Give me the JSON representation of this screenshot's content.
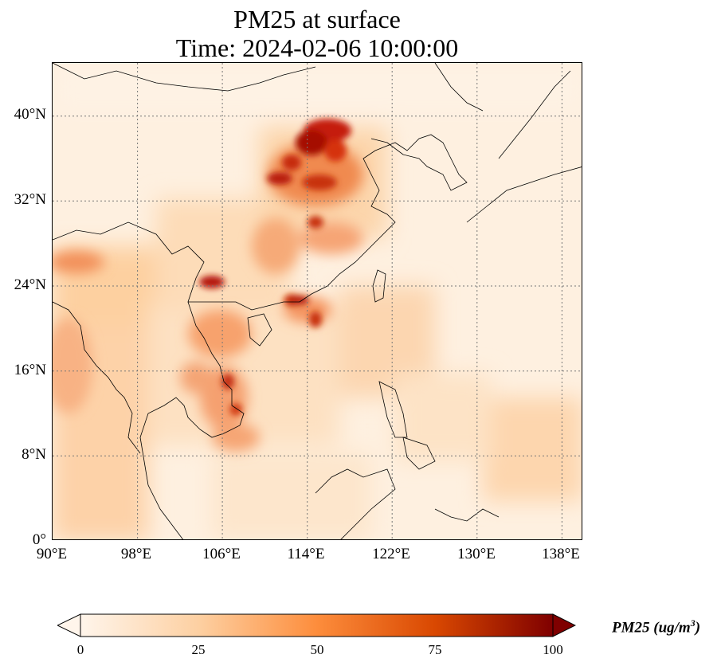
{
  "title": {
    "line1": "PM25 at surface",
    "line2": "Time: 2024-02-06 10:00:00"
  },
  "lat_labels": [
    "40°N",
    "32°N",
    "24°N",
    "16°N",
    "8°N",
    "0°"
  ],
  "lon_labels": [
    "90°E",
    "98°E",
    "106°E",
    "114°E",
    "122°E",
    "130°E",
    "138°E"
  ],
  "colorbar": {
    "ticks": [
      "0",
      "25",
      "50",
      "75",
      "100"
    ],
    "label_main": "PM25 (ug/m",
    "label_sup": "3",
    "label_end": ")",
    "colors": [
      "#fff5eb",
      "#fdd0a2",
      "#fd8d3c",
      "#d94801",
      "#7f0000"
    ],
    "min": 0,
    "max": 100,
    "extend": "both"
  },
  "map": {
    "lon_range": [
      90,
      140
    ],
    "lat_range": [
      0,
      45
    ],
    "gridlines": "dotted",
    "gridline_color": "#888888"
  }
}
